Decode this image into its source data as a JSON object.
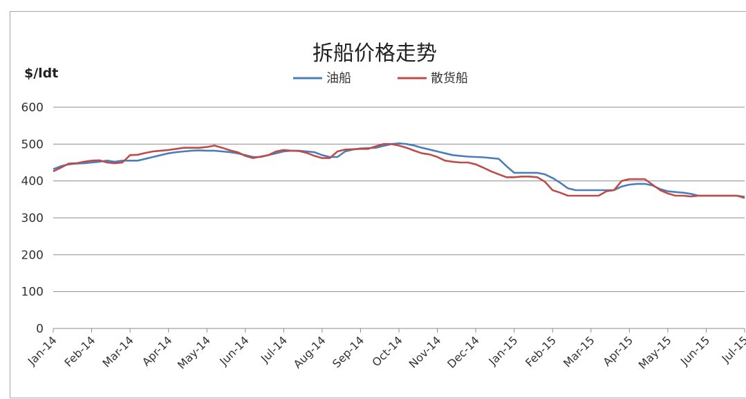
{
  "chart_data": {
    "type": "line",
    "title": "拆船价格走势",
    "ylabel": "$/ldt",
    "xlabel": "",
    "ylim": [
      0,
      600
    ],
    "yticks": [
      0,
      100,
      200,
      300,
      400,
      500,
      600
    ],
    "grid": true,
    "legend_position": "top-center",
    "categories": [
      "Jan-14",
      "Feb-14",
      "Mar-14",
      "Apr-14",
      "May-14",
      "Jun-14",
      "Jul-14",
      "Aug-14",
      "Sep-14",
      "Oct-14",
      "Nov-14",
      "Dec-14",
      "Jan-15",
      "Feb-15",
      "Mar-15",
      "Apr-15",
      "May-15",
      "Jun-15",
      "Jul-15"
    ],
    "x": [
      0,
      0.2,
      0.4,
      0.6,
      0.8,
      1,
      1.2,
      1.4,
      1.6,
      1.8,
      2,
      2.2,
      2.4,
      2.6,
      2.8,
      3,
      3.2,
      3.4,
      3.6,
      3.8,
      4,
      4.2,
      4.4,
      4.6,
      4.8,
      5,
      5.2,
      5.4,
      5.6,
      5.8,
      6,
      6.2,
      6.4,
      6.6,
      6.8,
      7,
      7.2,
      7.4,
      7.6,
      7.8,
      8,
      8.2,
      8.4,
      8.6,
      8.8,
      9,
      9.2,
      9.4,
      9.6,
      9.8,
      10,
      10.2,
      10.4,
      10.6,
      10.8,
      11,
      11.2,
      11.4,
      11.6,
      11.8,
      12,
      12.2,
      12.4,
      12.6,
      12.8,
      13,
      13.2,
      13.4,
      13.6,
      13.8,
      14,
      14.2,
      14.4,
      14.6,
      14.8,
      15,
      15.2,
      15.4,
      15.6,
      15.8,
      16,
      16.2,
      16.4,
      16.6,
      16.8,
      17,
      17.2,
      17.4,
      17.6,
      17.8,
      18
    ],
    "series": [
      {
        "name": "油船",
        "color": "#4a7ebb",
        "values": [
          432,
          440,
          445,
          447,
          448,
          450,
          452,
          455,
          452,
          455,
          455,
          455,
          460,
          465,
          470,
          475,
          478,
          480,
          482,
          483,
          482,
          482,
          480,
          478,
          475,
          470,
          465,
          465,
          470,
          475,
          480,
          482,
          482,
          480,
          478,
          470,
          465,
          465,
          480,
          485,
          488,
          489,
          490,
          495,
          500,
          502,
          500,
          496,
          490,
          485,
          480,
          475,
          470,
          468,
          466,
          465,
          464,
          462,
          460,
          440,
          422,
          422,
          422,
          422,
          418,
          408,
          395,
          380,
          375,
          375,
          375,
          375,
          375,
          375,
          385,
          390,
          392,
          392,
          388,
          378,
          372,
          370,
          368,
          365,
          360,
          360,
          360,
          360,
          360,
          360,
          357
        ]
      },
      {
        "name": "散货船",
        "color": "#be4b48",
        "values": [
          426,
          436,
          447,
          448,
          452,
          455,
          456,
          450,
          448,
          450,
          470,
          471,
          476,
          480,
          482,
          484,
          487,
          490,
          490,
          490,
          492,
          496,
          490,
          483,
          478,
          468,
          462,
          466,
          470,
          480,
          484,
          482,
          481,
          476,
          468,
          462,
          462,
          480,
          485,
          486,
          487,
          487,
          494,
          500,
          500,
          496,
          490,
          482,
          475,
          472,
          465,
          455,
          452,
          450,
          450,
          445,
          436,
          426,
          418,
          410,
          410,
          412,
          412,
          410,
          398,
          375,
          368,
          360,
          360,
          360,
          360,
          360,
          372,
          375,
          400,
          405,
          405,
          405,
          390,
          375,
          366,
          360,
          360,
          358,
          360,
          360,
          360,
          360,
          360,
          360,
          354
        ]
      }
    ]
  }
}
